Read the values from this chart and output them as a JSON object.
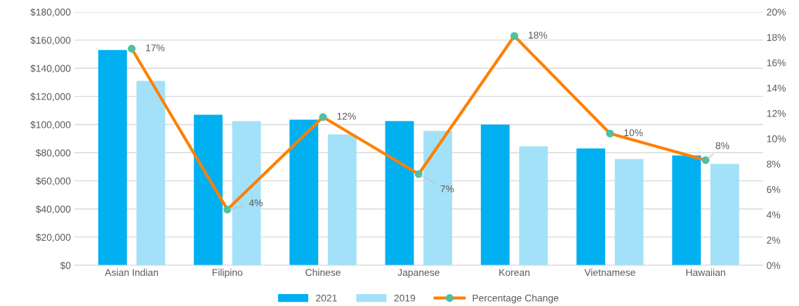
{
  "chart_data": {
    "type": "bar",
    "categories": [
      "Asian Indian",
      "Filipino",
      "Chinese",
      "Japanese",
      "Korean",
      "Vietnamese",
      "Hawaiian"
    ],
    "series": [
      {
        "name": "2021",
        "color": "#00b0f0",
        "values": [
          153000,
          107000,
          103500,
          102500,
          100000,
          83000,
          78000
        ]
      },
      {
        "name": "2019",
        "color": "#a3e1f8",
        "values": [
          131000,
          102500,
          93000,
          95500,
          84500,
          75500,
          72000
        ]
      },
      {
        "name": "Percentage Change",
        "type": "line",
        "axis": "y2",
        "color": "#ff8000",
        "marker": "circle",
        "values": [
          17.1,
          4.4,
          11.7,
          7.2,
          18.1,
          10.4,
          8.3
        ],
        "value_labels": [
          "17%",
          "4%",
          "12%",
          "7%",
          "18%",
          "10%",
          "8%"
        ]
      }
    ],
    "ylim": [
      0,
      180000
    ],
    "yticks": [
      {
        "value": 0,
        "label": "$0"
      },
      {
        "value": 20000,
        "label": "$20,000"
      },
      {
        "value": 40000,
        "label": "$40,000"
      },
      {
        "value": 60000,
        "label": "$60,000"
      },
      {
        "value": 80000,
        "label": "$80,000"
      },
      {
        "value": 100000,
        "label": "$100,000"
      },
      {
        "value": 120000,
        "label": "$120,000"
      },
      {
        "value": 140000,
        "label": "$140,000"
      },
      {
        "value": 160000,
        "label": "$160,000"
      },
      {
        "value": 180000,
        "label": "$180,000"
      }
    ],
    "y2lim": [
      0,
      20
    ],
    "y2ticks": [
      {
        "value": 0,
        "label": "0%"
      },
      {
        "value": 2,
        "label": "2%"
      },
      {
        "value": 4,
        "label": "4%"
      },
      {
        "value": 6,
        "label": "6%"
      },
      {
        "value": 8,
        "label": "8%"
      },
      {
        "value": 10,
        "label": "10%"
      },
      {
        "value": 12,
        "label": "12%"
      },
      {
        "value": 14,
        "label": "14%"
      },
      {
        "value": 16,
        "label": "16%"
      },
      {
        "value": 18,
        "label": "18%"
      },
      {
        "value": 20,
        "label": "20%"
      }
    ],
    "grid": "y",
    "legend": "bottom"
  }
}
